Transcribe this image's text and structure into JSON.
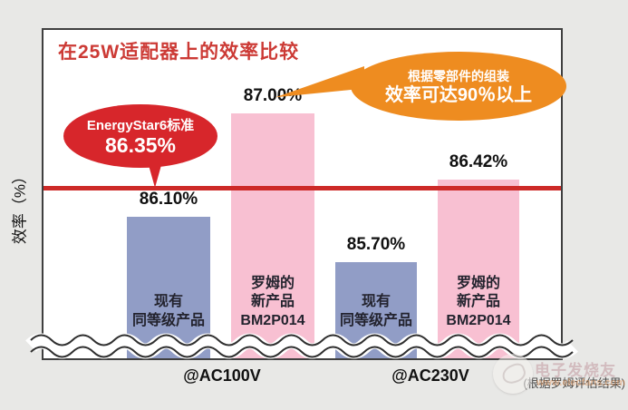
{
  "colors": {
    "bar-blue": "#919dc6",
    "bar-pink": "#f8c0d2",
    "reference-red": "#cd2a28",
    "bubble-red": "#d7262b",
    "callout-orange": "#ee8c20",
    "title-red": "#cc3a35"
  },
  "chart": {
    "title": "在25W适配器上的效率比较",
    "ylabel": "效率（%）",
    "bars": [
      {
        "value": 86.1,
        "value_label": "86.10%",
        "color": "blue",
        "name_lines": [
          "现有",
          "同等级产品"
        ]
      },
      {
        "value": 87.0,
        "value_label": "87.00%",
        "color": "pink",
        "name_lines": [
          "罗姆的",
          "新产品",
          "BM2P014"
        ]
      },
      {
        "value": 85.7,
        "value_label": "85.70%",
        "color": "blue",
        "name_lines": [
          "现有",
          "同等级产品"
        ]
      },
      {
        "value": 86.42,
        "value_label": "86.42%",
        "color": "pink",
        "name_lines": [
          "罗姆的",
          "新产品",
          "BM2P014"
        ]
      }
    ],
    "reference_line": {
      "label": "EnergyStar6标准",
      "value_label": "86.35%",
      "value": 86.35
    },
    "callout": {
      "line1": "根据零部件的组装",
      "line2": "效率可达90％以上"
    },
    "x_labels": [
      "@AC100V",
      "@AC230V"
    ],
    "note": "(根据罗姆评估结果)"
  },
  "watermark": {
    "brand": "电子发烧友",
    "site": "www.elecfans.com"
  },
  "chart_data": {
    "type": "bar",
    "title": "在25W适配器上的效率比较",
    "ylabel": "效率（%）",
    "categories": [
      "@AC100V",
      "@AC230V"
    ],
    "series": [
      {
        "name": "现有同等级产品",
        "values": [
          86.1,
          85.7
        ],
        "color": "#919dc6"
      },
      {
        "name": "罗姆的新产品 BM2P014",
        "values": [
          87.0,
          86.42
        ],
        "color": "#f8c0d2"
      }
    ],
    "data_labels": [
      "86.10%",
      "87.00%",
      "85.70%",
      "86.42%"
    ],
    "reference_line": {
      "label": "EnergyStar6标准",
      "value": 86.35,
      "color": "#cd2a28"
    },
    "annotations": [
      "根据零部件的组装 效率可达90％以上",
      "(根据罗姆评估结果)"
    ],
    "axis_break": true,
    "grid": false,
    "legend": "none",
    "ylim_visible": [
      85.0,
      87.6
    ]
  }
}
